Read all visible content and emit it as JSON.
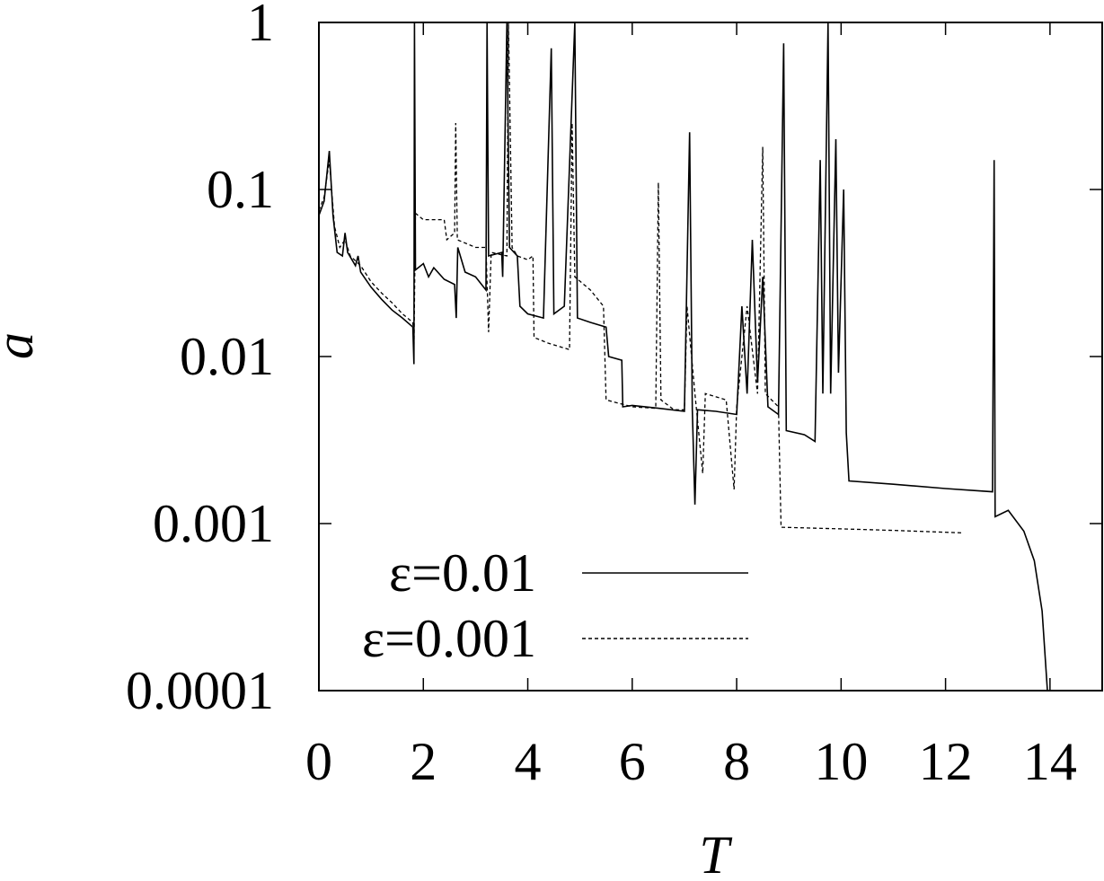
{
  "chart_data": {
    "type": "line",
    "x_label": "T",
    "y_label": "a",
    "xlim": [
      0,
      15
    ],
    "xticks": [
      0,
      2,
      4,
      6,
      8,
      10,
      12,
      14
    ],
    "ylim": [
      0.0001,
      1
    ],
    "yticks": [
      0.0001,
      0.001,
      0.01,
      0.1,
      1
    ],
    "log_y": true,
    "legend": "lower left",
    "series": [
      {
        "name": "ε=0.01",
        "color": "#000000",
        "style": "solid",
        "x": [
          0,
          0.1,
          0.2,
          0.27,
          0.35,
          0.45,
          0.5,
          0.55,
          0.7,
          0.75,
          0.8,
          1.0,
          1.2,
          1.4,
          1.6,
          1.8,
          1.82,
          1.83,
          1.85,
          2.0,
          2.1,
          2.2,
          2.4,
          2.6,
          2.63,
          2.66,
          2.8,
          3.0,
          3.2,
          3.22,
          3.25,
          3.5,
          3.52,
          3.6,
          3.65,
          3.8,
          3.85,
          4.0,
          4.3,
          4.45,
          4.5,
          4.7,
          4.9,
          4.95,
          5.2,
          5.5,
          5.55,
          5.8,
          5.82,
          6.0,
          6.5,
          7.0,
          7.1,
          7.15,
          7.2,
          7.25,
          7.6,
          8.0,
          8.1,
          8.2,
          8.3,
          8.4,
          8.5,
          8.6,
          8.8,
          8.9,
          8.95,
          9.3,
          9.5,
          9.6,
          9.65,
          9.75,
          9.8,
          9.9,
          9.95,
          10.05,
          10.1,
          10.15,
          11.0,
          12.0,
          12.9,
          12.93,
          12.95,
          13.2,
          13.5,
          13.7,
          13.85,
          13.95
        ],
        "values": [
          0.07,
          0.085,
          0.17,
          0.07,
          0.042,
          0.04,
          0.055,
          0.042,
          0.035,
          0.04,
          0.032,
          0.026,
          0.022,
          0.019,
          0.017,
          0.015,
          0.009,
          1,
          0.033,
          0.036,
          0.03,
          0.034,
          0.029,
          0.027,
          0.017,
          0.045,
          0.032,
          0.03,
          0.025,
          1,
          0.04,
          0.042,
          0.03,
          1,
          0.045,
          0.04,
          0.02,
          0.018,
          0.017,
          0.7,
          0.018,
          0.02,
          1,
          0.017,
          0.016,
          0.015,
          0.01,
          0.0095,
          0.005,
          0.0051,
          0.0049,
          0.0047,
          0.22,
          0.0048,
          0.0013,
          0.0048,
          0.0047,
          0.0045,
          0.02,
          0.006,
          0.05,
          0.007,
          0.03,
          0.005,
          0.0045,
          0.75,
          0.0036,
          0.0034,
          0.0031,
          0.15,
          0.006,
          1,
          0.006,
          0.2,
          0.008,
          0.1,
          0.0035,
          0.0018,
          0.00172,
          0.00162,
          0.00155,
          0.15,
          0.0011,
          0.0012,
          0.0009,
          0.0006,
          0.0003,
          0.0001
        ]
      },
      {
        "name": "ε=0.001",
        "color": "#000000",
        "style": "dashed",
        "x": [
          0,
          0.1,
          0.2,
          0.3,
          0.4,
          0.5,
          0.6,
          0.8,
          1.0,
          1.2,
          1.4,
          1.6,
          1.8,
          1.82,
          1.85,
          2.0,
          2.4,
          2.45,
          2.6,
          2.62,
          2.65,
          3.0,
          3.2,
          3.25,
          3.3,
          3.6,
          3.63,
          3.7,
          3.8,
          4.0,
          4.1,
          4.12,
          4.4,
          4.8,
          4.85,
          4.9,
          5.2,
          5.45,
          5.5,
          6.0,
          6.45,
          6.5,
          6.55,
          6.8,
          7.0,
          7.05,
          7.2,
          7.35,
          7.4,
          7.8,
          7.95,
          8.0,
          8.2,
          8.4,
          8.5,
          8.55,
          8.8,
          8.85,
          10.0,
          11.0,
          12.3
        ],
        "values": [
          0.075,
          0.09,
          0.15,
          0.06,
          0.045,
          0.05,
          0.04,
          0.035,
          0.028,
          0.024,
          0.021,
          0.018,
          0.016,
          0.011,
          0.072,
          0.066,
          0.066,
          0.05,
          0.055,
          0.25,
          0.05,
          0.045,
          0.045,
          0.014,
          0.042,
          0.04,
          1,
          0.045,
          0.04,
          0.038,
          0.04,
          0.013,
          0.012,
          0.011,
          0.25,
          0.03,
          0.025,
          0.02,
          0.0055,
          0.005,
          0.0049,
          0.11,
          0.0055,
          0.0048,
          0.0048,
          0.02,
          0.006,
          0.002,
          0.006,
          0.0055,
          0.0016,
          0.005,
          0.02,
          0.006,
          0.18,
          0.006,
          0.005,
          0.00095,
          0.00093,
          0.00091,
          0.00088
        ]
      }
    ]
  }
}
